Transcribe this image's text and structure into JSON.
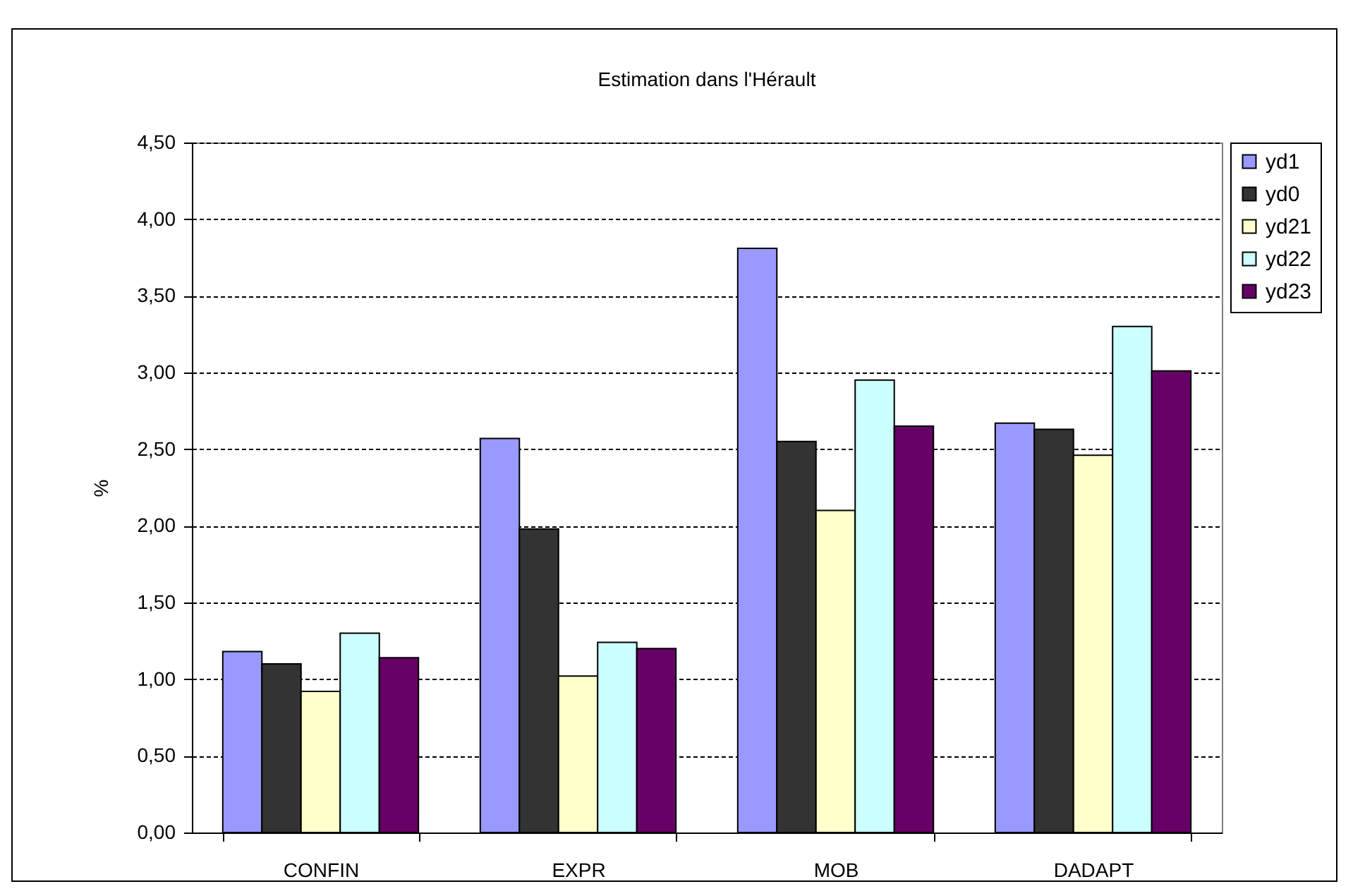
{
  "chart_data": {
    "type": "bar",
    "title": "Estimation dans l'Hérault",
    "ylabel": "%",
    "categories": [
      "CONFIN",
      "EXPR",
      "MOB",
      "DADAPT"
    ],
    "series": [
      {
        "name": "yd1",
        "color": "#9999ff",
        "values": [
          1.18,
          2.57,
          3.81,
          2.67
        ]
      },
      {
        "name": "yd0",
        "color": "#333333",
        "values": [
          1.1,
          1.98,
          2.55,
          2.63
        ]
      },
      {
        "name": "yd21",
        "color": "#ffffcc",
        "values": [
          0.92,
          1.02,
          2.1,
          2.46
        ]
      },
      {
        "name": "yd22",
        "color": "#ccffff",
        "values": [
          1.3,
          1.24,
          2.95,
          3.3
        ]
      },
      {
        "name": "yd23",
        "color": "#660066",
        "values": [
          1.14,
          1.2,
          2.65,
          3.01
        ]
      }
    ],
    "ylim": [
      0,
      4.5
    ],
    "yticks": [
      {
        "value": 0,
        "label": "0,00"
      },
      {
        "value": 0.5,
        "label": "0,50"
      },
      {
        "value": 1,
        "label": "1,00"
      },
      {
        "value": 1.5,
        "label": "1,50"
      },
      {
        "value": 2,
        "label": "2,00"
      },
      {
        "value": 2.5,
        "label": "2,50"
      },
      {
        "value": 3,
        "label": "3,00"
      },
      {
        "value": 3.5,
        "label": "3,50"
      },
      {
        "value": 4,
        "label": "4,00"
      },
      {
        "value": 4.5,
        "label": "4,50"
      }
    ],
    "grid": "y",
    "legend": "right"
  }
}
